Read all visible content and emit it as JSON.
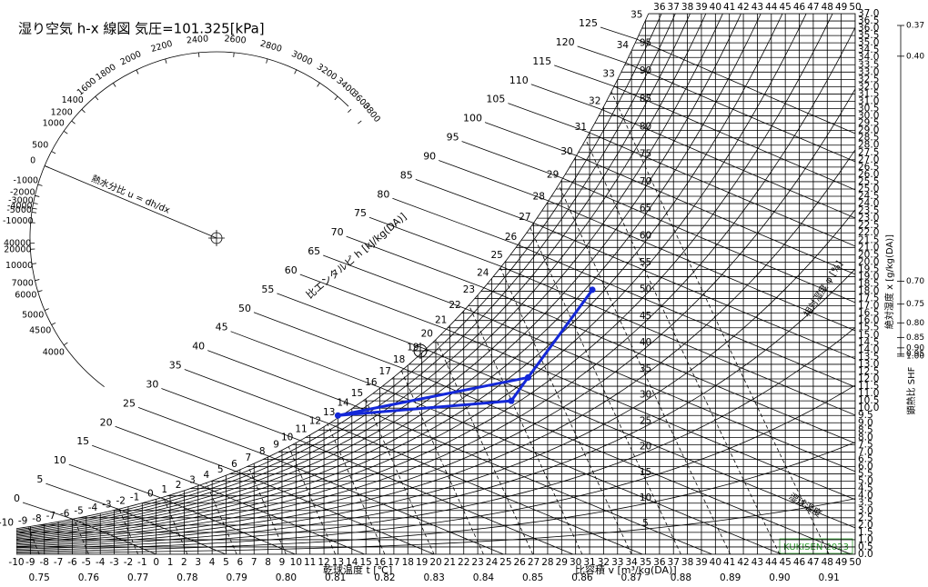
{
  "chart_data": {
    "type": "psychrometric",
    "title": "湿り空気 h-x 線図 気圧=101.325[kPa]",
    "pressure_kpa": 101.325,
    "xlabel": "乾球温度 t [℃]",
    "ylabel": "絶対湿度 x [g/kg(DA)]",
    "vlabel": "比容積 v [m³/kg(DA)]",
    "hlabel": "比エンタルピ h [kJ/kg(DA)]",
    "rh_label": "相対湿度 φ [%]",
    "wb_label": "湿球温度",
    "shf_label": "顕熱比 SHF",
    "u_label": "熱水分比 u = dh/dx",
    "credit": "KUKISEN 2023",
    "xlim": [
      -10,
      50
    ],
    "xticks": [
      -10,
      -9,
      -8,
      -7,
      -6,
      -5,
      -4,
      -3,
      -2,
      -1,
      0,
      1,
      2,
      3,
      4,
      5,
      6,
      7,
      8,
      9,
      10,
      11,
      12,
      13,
      14,
      15,
      16,
      17,
      18,
      19,
      20,
      21,
      22,
      23,
      24,
      25,
      26,
      27,
      28,
      29,
      30,
      31,
      32,
      33,
      34,
      35,
      36,
      37,
      38,
      39,
      40,
      41,
      42,
      43,
      44,
      45,
      46,
      47,
      48,
      49,
      50
    ],
    "ylim": [
      0,
      37
    ],
    "yticks": [
      {
        "value": 0,
        "label": "0.0"
      },
      {
        "value": 0.5,
        "label": "0.5"
      },
      {
        "value": 1,
        "label": "1.0"
      },
      {
        "value": 1.5,
        "label": "1.5"
      },
      {
        "value": 2,
        "label": "2.0"
      },
      {
        "value": 2.5,
        "label": "2.5"
      },
      {
        "value": 3,
        "label": "3.0"
      },
      {
        "value": 3.5,
        "label": "3.5"
      },
      {
        "value": 4,
        "label": "4.0"
      },
      {
        "value": 4.5,
        "label": "4.5"
      },
      {
        "value": 5,
        "label": "5.0"
      },
      {
        "value": 5.5,
        "label": "5.5"
      },
      {
        "value": 6,
        "label": "6.0"
      },
      {
        "value": 6.5,
        "label": "6.5"
      },
      {
        "value": 7,
        "label": "7.0"
      },
      {
        "value": 7.5,
        "label": "7.5"
      },
      {
        "value": 8,
        "label": "8.0"
      },
      {
        "value": 8.5,
        "label": "8.5"
      },
      {
        "value": 9,
        "label": "9.0"
      },
      {
        "value": 9.5,
        "label": "9.5"
      },
      {
        "value": 10,
        "label": "10.0"
      },
      {
        "value": 10.5,
        "label": "10.5"
      },
      {
        "value": 11,
        "label": "11.0"
      },
      {
        "value": 11.5,
        "label": "11.5"
      },
      {
        "value": 12,
        "label": "12.0"
      },
      {
        "value": 12.5,
        "label": "12.5"
      },
      {
        "value": 13,
        "label": "13.0"
      },
      {
        "value": 13.5,
        "label": "13.5"
      },
      {
        "value": 14,
        "label": "14.0"
      },
      {
        "value": 14.5,
        "label": "14.5"
      },
      {
        "value": 15,
        "label": "15.0"
      },
      {
        "value": 15.5,
        "label": "15.5"
      },
      {
        "value": 16,
        "label": "16.0"
      },
      {
        "value": 16.5,
        "label": "16.5"
      },
      {
        "value": 17,
        "label": "17.0"
      },
      {
        "value": 17.5,
        "label": "17.5"
      },
      {
        "value": 18,
        "label": "18.0"
      },
      {
        "value": 18.5,
        "label": "18.5"
      },
      {
        "value": 19,
        "label": "19.0"
      },
      {
        "value": 19.5,
        "label": "19.5"
      },
      {
        "value": 20,
        "label": "20.0"
      },
      {
        "value": 20.5,
        "label": "20.5"
      },
      {
        "value": 21,
        "label": "21.0"
      },
      {
        "value": 21.5,
        "label": "21.5"
      },
      {
        "value": 22,
        "label": "22.0"
      },
      {
        "value": 22.5,
        "label": "22.5"
      },
      {
        "value": 23,
        "label": "23.0"
      },
      {
        "value": 23.5,
        "label": "23.5"
      },
      {
        "value": 24,
        "label": "24.0"
      },
      {
        "value": 24.5,
        "label": "24.5"
      },
      {
        "value": 25,
        "label": "25.0"
      },
      {
        "value": 25.5,
        "label": "25.5"
      },
      {
        "value": 26,
        "label": "26.0"
      },
      {
        "value": 26.5,
        "label": "26.5"
      },
      {
        "value": 27,
        "label": "27.0"
      },
      {
        "value": 27.5,
        "label": "27.5"
      },
      {
        "value": 28,
        "label": "28.0"
      },
      {
        "value": 28.5,
        "label": "28.5"
      },
      {
        "value": 29,
        "label": "29.0"
      },
      {
        "value": 29.5,
        "label": "29.5"
      },
      {
        "value": 30,
        "label": "30.0"
      },
      {
        "value": 30.5,
        "label": "30.5"
      },
      {
        "value": 31,
        "label": "31.0"
      },
      {
        "value": 31.5,
        "label": "31.5"
      },
      {
        "value": 32,
        "label": "32.0"
      },
      {
        "value": 32.5,
        "label": "32.5"
      },
      {
        "value": 33,
        "label": "33.0"
      },
      {
        "value": 33.5,
        "label": "33.5"
      },
      {
        "value": 34,
        "label": "34.0"
      },
      {
        "value": 34.5,
        "label": "34.5"
      },
      {
        "value": 35,
        "label": "35.0"
      },
      {
        "value": 35.5,
        "label": "35.5"
      },
      {
        "value": 36,
        "label": "36.0"
      },
      {
        "value": 36.5,
        "label": "36.5"
      },
      {
        "value": 37,
        "label": "37.0"
      }
    ],
    "vticks": [
      0.75,
      0.76,
      0.77,
      0.78,
      0.79,
      {
        "value": 0.8,
        "label": "0.80"
      },
      0.81,
      0.82,
      0.83,
      0.84,
      0.85,
      0.86,
      0.87,
      0.88,
      0.89,
      {
        "value": 0.9,
        "label": "0.90"
      },
      0.91
    ],
    "hticks": [
      0,
      5,
      10,
      15,
      20,
      25,
      30,
      35,
      40,
      45,
      50,
      55,
      60,
      65,
      70,
      75,
      80,
      85,
      90,
      95,
      100,
      105,
      110,
      115,
      120,
      125
    ],
    "rh_ticks": [
      5,
      10,
      15,
      20,
      25,
      30,
      35,
      40,
      45,
      50,
      55,
      60,
      65,
      70,
      75,
      80,
      85,
      90,
      95
    ],
    "shf_ticks": [
      0.37,
      {
        "value": 0.4,
        "label": "0.40"
      },
      {
        "value": 0.7,
        "label": "0.70"
      },
      0.75,
      {
        "value": 0.8,
        "label": "0.80"
      },
      0.85,
      {
        "value": 0.9,
        "label": "0.90"
      },
      0.95,
      {
        "value": 1,
        "label": "1.00"
      }
    ],
    "u_ticks": [
      -10000,
      -5000,
      -4000,
      -3000,
      -2000,
      -1000,
      0,
      500,
      1000,
      1200,
      1400,
      1600,
      1800,
      2000,
      2200,
      2400,
      2600,
      2800,
      3000,
      3200,
      3400,
      3600,
      3800,
      4000,
      4500,
      5000,
      6000,
      7000,
      10000,
      20000,
      40000
    ],
    "process": {
      "color": "#1428d8",
      "x": [
        31.2,
        26.6,
        13.0,
        25.4,
        26.6
      ],
      "values": [
        18.1,
        12.1,
        9.5,
        10.5,
        12.1
      ]
    }
  }
}
